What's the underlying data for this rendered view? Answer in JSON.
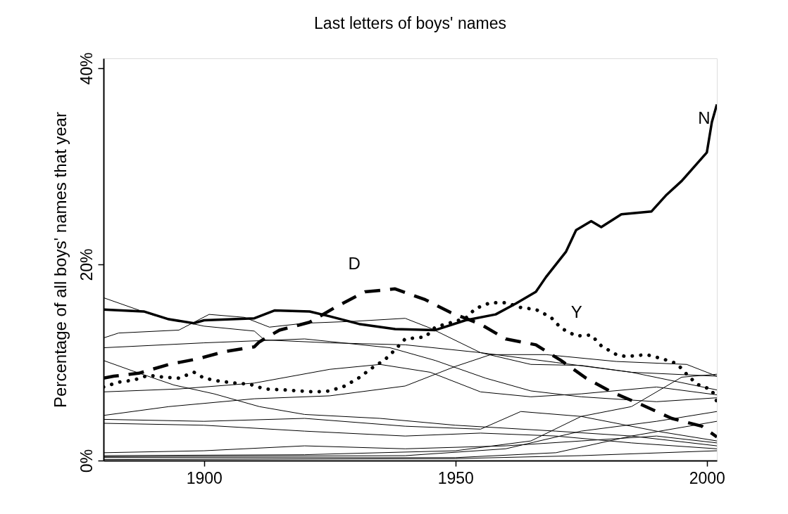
{
  "chart_data": {
    "type": "line",
    "title": "Last letters of boys' names",
    "ylabel": "Percentage of all boys' names that year",
    "xlim": [
      1880,
      2002
    ],
    "xticks": [
      1900,
      1950,
      2000
    ],
    "ylim": [
      0,
      41
    ],
    "yticks": [
      {
        "value": 0,
        "label": "0%"
      },
      {
        "value": 20,
        "label": "20%"
      },
      {
        "value": 40,
        "label": "40%"
      }
    ],
    "series": [
      {
        "name": "N",
        "color": "#000000",
        "line_style": "solid",
        "x": [
          1880,
          1888,
          1893,
          1898,
          1900,
          1910,
          1914,
          1921,
          1925,
          1931,
          1938,
          1946,
          1952,
          1958,
          1962,
          1966,
          1968,
          1972,
          1974,
          1977,
          1979,
          1983,
          1989,
          1992,
          1995,
          2000,
          2001,
          2002
        ],
        "values": [
          15.4,
          15.2,
          14.4,
          14.0,
          14.3,
          14.5,
          15.3,
          15.2,
          14.7,
          13.9,
          13.4,
          13.3,
          14.3,
          14.9,
          16.0,
          17.2,
          18.7,
          21.3,
          23.5,
          24.4,
          23.8,
          25.1,
          25.4,
          27.1,
          28.5,
          31.4,
          34.5,
          36.3
        ]
      },
      {
        "name": "D",
        "color": "#000000",
        "line_style": "dashed",
        "x": [
          1880,
          1882,
          1887,
          1893,
          1899,
          1904,
          1910,
          1911,
          1915,
          1921,
          1926,
          1932,
          1938,
          1944,
          1949,
          1955,
          1960,
          1966,
          1971,
          1976,
          1981,
          1987,
          1993,
          1999,
          2002
        ],
        "values": [
          8.4,
          8.6,
          8.9,
          9.8,
          10.4,
          11.1,
          11.6,
          12.1,
          13.3,
          14.1,
          15.6,
          17.2,
          17.5,
          16.4,
          15.1,
          13.9,
          12.4,
          11.8,
          10.2,
          8.4,
          7.0,
          5.7,
          4.3,
          3.5,
          2.4
        ]
      },
      {
        "name": "Y",
        "color": "#000000",
        "line_style": "dotted",
        "x": [
          1880,
          1883,
          1886,
          1889,
          1892,
          1895,
          1898,
          1900,
          1903,
          1906,
          1909,
          1912,
          1916,
          1919,
          1922,
          1925,
          1928,
          1931,
          1933,
          1936,
          1938,
          1940,
          1944,
          1946,
          1952,
          1954,
          1957,
          1960,
          1963,
          1966,
          1969,
          1971,
          1974,
          1977,
          1979,
          1982,
          1984,
          1988,
          1991,
          1994,
          1996,
          1998,
          2001,
          2002
        ],
        "values": [
          7.5,
          8.0,
          8.2,
          8.7,
          8.5,
          8.4,
          9.0,
          8.4,
          8.1,
          7.9,
          7.8,
          7.3,
          7.2,
          7.1,
          7.0,
          7.1,
          7.6,
          8.5,
          9.3,
          10.3,
          11.3,
          12.4,
          12.6,
          13.6,
          14.5,
          15.5,
          16.1,
          16.1,
          15.6,
          15.4,
          14.6,
          13.5,
          12.7,
          12.8,
          11.7,
          10.8,
          10.6,
          10.8,
          10.4,
          9.9,
          8.8,
          7.8,
          7.2,
          6.0
        ]
      },
      {
        "color": "#000000",
        "x": [
          1880,
          1890,
          1900,
          1910,
          1912,
          1925,
          1940,
          1955,
          1970,
          1985,
          2002
        ],
        "values": [
          16.6,
          14.8,
          13.7,
          13.2,
          12.3,
          12.0,
          11.8,
          11.0,
          10.0,
          9.0,
          8.6
        ]
      },
      {
        "color": "#000000",
        "x": [
          1880,
          1883,
          1895,
          1901,
          1908,
          1913,
          1920,
          1930,
          1940,
          1945,
          1955,
          1965,
          1975,
          1985,
          2002
        ],
        "values": [
          12.5,
          13.0,
          13.3,
          14.9,
          14.6,
          13.6,
          14.0,
          14.2,
          14.5,
          13.5,
          11.0,
          9.8,
          9.7,
          9.0,
          7.2
        ]
      },
      {
        "color": "#000000",
        "x": [
          1880,
          1886,
          1894,
          1902,
          1911,
          1920,
          1935,
          1950,
          1970,
          1985,
          2002
        ],
        "values": [
          10.2,
          9.1,
          7.7,
          6.8,
          5.5,
          4.7,
          4.3,
          3.6,
          3.0,
          2.5,
          1.5
        ]
      },
      {
        "color": "#000000",
        "x": [
          1880,
          1895,
          1910,
          1925,
          1935,
          1945,
          1955,
          1965,
          1975,
          1990,
          2002
        ],
        "values": [
          7.0,
          7.3,
          7.9,
          9.3,
          9.8,
          9.0,
          7.0,
          6.5,
          6.8,
          7.5,
          6.7
        ]
      },
      {
        "color": "#000000",
        "x": [
          1880,
          1893,
          1910,
          1925,
          1940,
          1950,
          1957,
          1968,
          1982,
          1996,
          2002
        ],
        "values": [
          4.6,
          5.5,
          6.3,
          6.6,
          7.6,
          9.6,
          10.8,
          10.8,
          10.1,
          9.8,
          8.6
        ]
      },
      {
        "color": "#000000",
        "x": [
          1880,
          1900,
          1920,
          1937,
          1946,
          1956,
          1965,
          1975,
          1990,
          2002
        ],
        "values": [
          11.5,
          12.0,
          12.4,
          11.5,
          10.2,
          8.4,
          7.1,
          6.5,
          6.0,
          6.4
        ]
      },
      {
        "color": "#000000",
        "x": [
          1880,
          1900,
          1920,
          1940,
          1955,
          1963,
          1975,
          1990,
          2002
        ],
        "values": [
          4.2,
          4.0,
          4.3,
          3.5,
          3.2,
          5.0,
          4.5,
          3.0,
          2.0
        ]
      },
      {
        "color": "#000000",
        "x": [
          1880,
          1900,
          1920,
          1940,
          1955,
          1970,
          1985,
          2002
        ],
        "values": [
          3.8,
          3.6,
          3.0,
          2.5,
          2.8,
          2.5,
          1.8,
          1.2
        ]
      },
      {
        "color": "#000000",
        "x": [
          1880,
          1920,
          1950,
          1965,
          1975,
          1985,
          1995,
          2002
        ],
        "values": [
          0.5,
          0.6,
          1.0,
          2.0,
          4.5,
          5.5,
          8.5,
          8.8
        ]
      },
      {
        "color": "#000000",
        "x": [
          1880,
          1940,
          1960,
          1975,
          1990,
          2002
        ],
        "values": [
          0.4,
          0.5,
          1.2,
          3.0,
          4.0,
          5.0
        ]
      },
      {
        "color": "#000000",
        "x": [
          1880,
          1900,
          1920,
          1940,
          1960,
          1975,
          1990,
          2002
        ],
        "values": [
          0.8,
          1.0,
          1.5,
          1.2,
          1.5,
          2.0,
          2.5,
          1.8
        ]
      },
      {
        "color": "#000000",
        "x": [
          1880,
          1950,
          1970,
          1985,
          2002
        ],
        "values": [
          0.3,
          0.3,
          0.8,
          2.5,
          4.0
        ]
      },
      {
        "color": "#000000",
        "x": [
          1880,
          1950,
          1975,
          2002
        ],
        "values": [
          0.1,
          0.2,
          0.5,
          1.0
        ]
      }
    ]
  }
}
